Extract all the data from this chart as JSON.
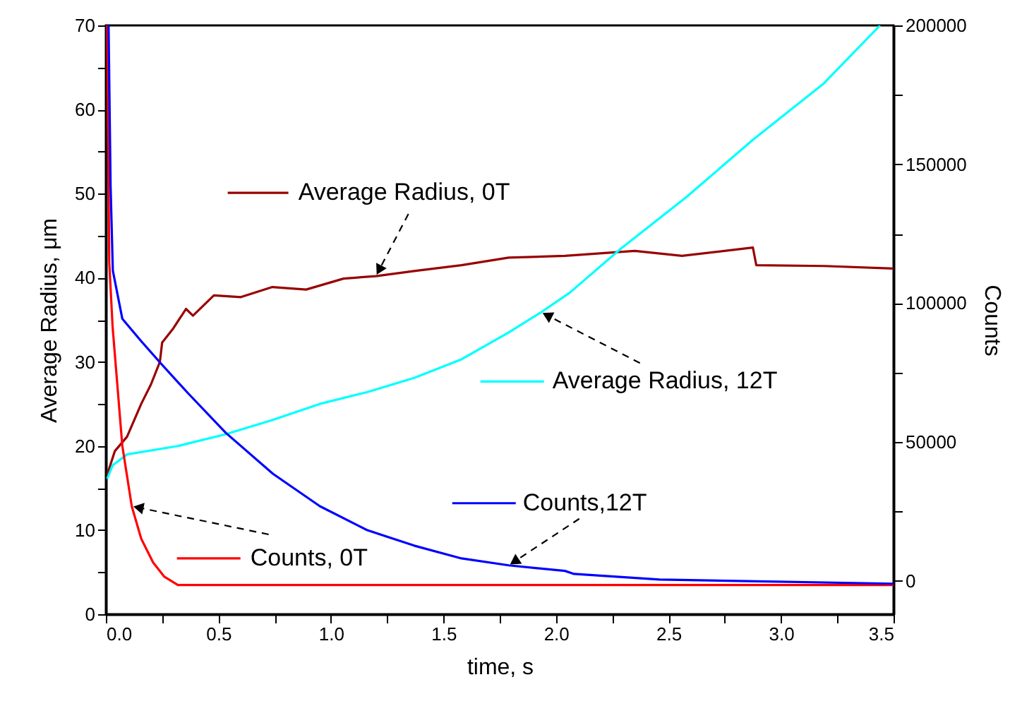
{
  "chart_data": {
    "type": "line",
    "xlabel": "time, s",
    "ylabel": "Average Radius, μm",
    "y2label": "Counts",
    "legend": "center",
    "xlim": [
      0,
      3.5
    ],
    "ylim": [
      0,
      70
    ],
    "y2lim": [
      -12000,
      200000
    ],
    "xticks": [
      {
        "value": 0,
        "label": "0.0"
      },
      {
        "value": 0.25,
        "label": null
      },
      {
        "value": 0.5,
        "label": "0.5"
      },
      {
        "value": 0.75,
        "label": null
      },
      {
        "value": 1,
        "label": "1.0"
      },
      {
        "value": 1.25,
        "label": null
      },
      {
        "value": 1.5,
        "label": "1.5"
      },
      {
        "value": 1.75,
        "label": null
      },
      {
        "value": 2,
        "label": "2.0"
      },
      {
        "value": 2.25,
        "label": null
      },
      {
        "value": 2.5,
        "label": "2.5"
      },
      {
        "value": 2.75,
        "label": null
      },
      {
        "value": 3,
        "label": "3.0"
      },
      {
        "value": 3.25,
        "label": null
      },
      {
        "value": 3.5,
        "label": "3.5"
      }
    ],
    "yticks": [
      0,
      {
        "value": 5,
        "label": null
      },
      10,
      {
        "value": 15,
        "label": null
      },
      20,
      {
        "value": 25,
        "label": null
      },
      30,
      {
        "value": 35,
        "label": null
      },
      40,
      {
        "value": 45,
        "label": null
      },
      50,
      {
        "value": 55,
        "label": null
      },
      60,
      {
        "value": 65,
        "label": null
      },
      70
    ],
    "y2ticks": [
      0,
      {
        "value": 25000,
        "label": null
      },
      50000,
      {
        "value": 75000,
        "label": null
      },
      100000,
      {
        "value": 125000,
        "label": null
      },
      150000,
      {
        "value": 175000,
        "label": null
      },
      200000
    ],
    "series": [
      {
        "name": "Average Radius, 0T",
        "color": "#990000",
        "x": [
          0.006,
          0.04,
          0.094,
          0.157,
          0.2,
          0.24,
          0.25,
          0.3,
          0.356,
          0.387,
          0.48,
          0.6,
          0.74,
          0.89,
          1.056,
          1.2,
          1.37,
          1.58,
          1.79,
          2.04,
          2.35,
          2.56,
          2.875,
          2.89,
          3.19,
          3.5
        ],
        "values": [
          16.6,
          19.4,
          21.1,
          25.0,
          27.3,
          30.0,
          32.3,
          34.0,
          36.3,
          35.5,
          37.9,
          37.7,
          38.9,
          38.6,
          39.9,
          40.2,
          40.8,
          41.5,
          42.4,
          42.6,
          43.2,
          42.6,
          43.6,
          41.5,
          41.4,
          41.1
        ]
      },
      {
        "name": "Average Radius, 12T",
        "color": "#00ffff",
        "x": [
          0.006,
          0.03,
          0.094,
          0.32,
          0.533,
          0.742,
          0.95,
          1.16,
          1.37,
          1.58,
          1.79,
          1.934,
          2.06,
          2.29,
          2.58,
          2.875,
          3.19,
          3.44
        ],
        "values": [
          16.1,
          17.7,
          19.0,
          20.0,
          21.4,
          23.1,
          25.0,
          26.4,
          28.1,
          30.3,
          33.5,
          35.9,
          38.2,
          43.5,
          49.6,
          56.4,
          63.1,
          70
        ]
      },
      {
        "name": "Counts, 0T",
        "color": "#ff0000",
        "axis": "y2",
        "x": [
          0.006,
          0.015,
          0.03,
          0.073,
          0.115,
          0.157,
          0.21,
          0.26,
          0.32,
          3.5
        ],
        "values": [
          200000,
          114700,
          91400,
          48700,
          26900,
          15200,
          6600,
          1500,
          -1500,
          -1500
        ]
      },
      {
        "name": "Counts,12T",
        "color": "#0000ff",
        "axis": "y2",
        "x": [
          0.012,
          0.021,
          0.031,
          0.073,
          0.157,
          0.24,
          0.366,
          0.533,
          0.742,
          0.951,
          1.16,
          1.37,
          1.58,
          1.79,
          2.04,
          2.08,
          2.46,
          3.5
        ],
        "values": [
          200000,
          142100,
          111700,
          94400,
          86300,
          78700,
          67500,
          53300,
          38600,
          26900,
          18300,
          12700,
          8100,
          5600,
          3600,
          2500,
          500,
          -1000
        ]
      }
    ]
  }
}
